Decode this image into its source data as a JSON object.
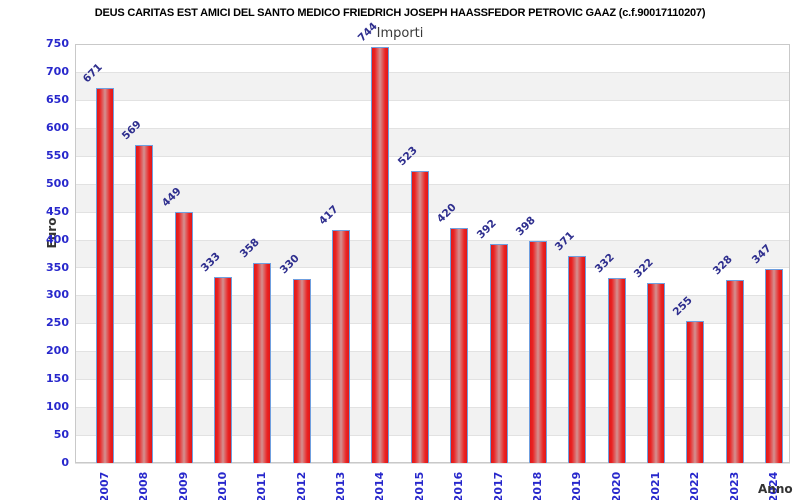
{
  "chart_data": {
    "type": "bar",
    "title": "DEUS CARITAS EST AMICI DEL SANTO MEDICO FRIEDRICH JOSEPH HAASSFEDOR PETROVIC GAAZ (c.f.90017110207)",
    "subtitle": "Importi",
    "xlabel": "Anno",
    "ylabel": "Euro",
    "categories": [
      "2007",
      "2008",
      "2009",
      "2010",
      "2011",
      "2012",
      "2013",
      "2014",
      "2015",
      "2016",
      "2017",
      "2018",
      "2019",
      "2020",
      "2021",
      "2022",
      "2023",
      "2024"
    ],
    "values": [
      671,
      569,
      449,
      333,
      358,
      330,
      417,
      744,
      523,
      420,
      392,
      398,
      371,
      332,
      322,
      255,
      328,
      347
    ],
    "ylim": [
      0,
      750
    ],
    "ytick_step": 50,
    "grid": true,
    "legend": "none",
    "bands_alternating": true
  },
  "colors": {
    "bar_fill_edge": "#e01818",
    "bar_fill_mid": "#d49090",
    "bar_border": "#6f9fdf",
    "value_label": "#2e2e8e",
    "tick_label": "#2828cc",
    "band_alt": "#f2f2f2",
    "band_main": "#ffffff",
    "gridline": "#e2e2e2",
    "plot_border": "#c9c9c9",
    "title": "#000000",
    "subtitle": "#3a3a3a",
    "axis_title": "#333333"
  }
}
